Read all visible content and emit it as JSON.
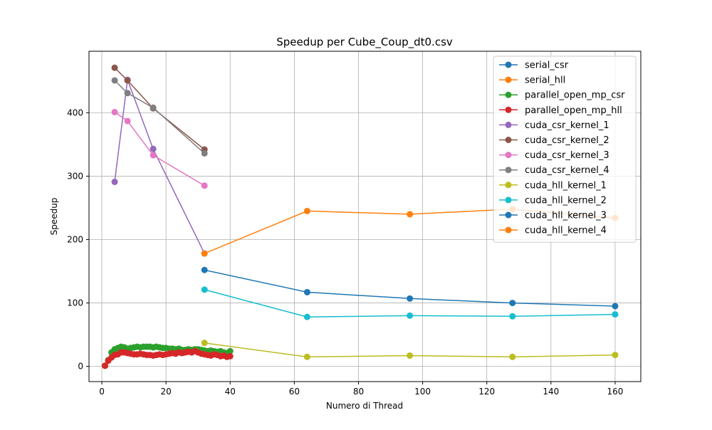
{
  "chart_data": {
    "type": "line",
    "title": "Speedup per Cube_Coup_dt0.csv",
    "xlabel": "Numero di Thread",
    "ylabel": "Speedup",
    "xlim": [
      -4,
      168
    ],
    "ylim": [
      -24,
      497
    ],
    "xticks": [
      0,
      20,
      40,
      60,
      80,
      100,
      120,
      140,
      160
    ],
    "yticks": [
      0,
      100,
      200,
      300,
      400
    ],
    "grid": true,
    "legend_position": "top-right",
    "series": [
      {
        "name": "serial_csr",
        "color": "#1f77b4",
        "x": [
          1
        ],
        "y": [
          1
        ]
      },
      {
        "name": "serial_hll",
        "color": "#ff7f0e",
        "x": [
          1
        ],
        "y": [
          1
        ]
      },
      {
        "name": "parallel_open_mp_csr",
        "color": "#2ca02c",
        "x": [
          1,
          2,
          3,
          4,
          5,
          6,
          7,
          8,
          9,
          10,
          11,
          12,
          13,
          14,
          15,
          16,
          17,
          18,
          19,
          20,
          21,
          22,
          23,
          24,
          25,
          26,
          27,
          28,
          29,
          30,
          31,
          32,
          33,
          34,
          35,
          36,
          37,
          38,
          39,
          40
        ],
        "y": [
          1,
          10,
          22,
          27,
          29,
          31,
          30,
          28,
          29,
          30,
          31,
          30,
          31,
          31,
          31,
          30,
          31,
          30,
          29,
          29,
          28,
          28,
          27,
          28,
          26,
          26,
          27,
          26,
          27,
          27,
          26,
          25,
          24,
          25,
          24,
          23,
          24,
          22,
          21,
          24
        ]
      },
      {
        "name": "parallel_open_mp_hll",
        "color": "#d62728",
        "x": [
          1,
          2,
          3,
          4,
          5,
          6,
          7,
          8,
          9,
          10,
          11,
          12,
          13,
          14,
          15,
          16,
          17,
          18,
          19,
          20,
          21,
          22,
          23,
          24,
          25,
          26,
          27,
          28,
          29,
          30,
          31,
          32,
          33,
          34,
          35,
          36,
          37,
          38,
          39,
          40
        ],
        "y": [
          1,
          9,
          14,
          18,
          19,
          22,
          22,
          21,
          20,
          19,
          19,
          20,
          19,
          18,
          18,
          17,
          18,
          19,
          18,
          19,
          20,
          21,
          20,
          22,
          21,
          22,
          23,
          22,
          24,
          22,
          20,
          19,
          18,
          17,
          19,
          18,
          16,
          17,
          15,
          16
        ]
      },
      {
        "name": "cuda_csr_kernel_1",
        "color": "#9467bd",
        "x": [
          4,
          8,
          16,
          32
        ],
        "y": [
          291,
          452,
          343,
          178
        ]
      },
      {
        "name": "cuda_csr_kernel_2",
        "color": "#8c564b",
        "x": [
          4,
          8,
          16,
          32
        ],
        "y": [
          471,
          451,
          407,
          342
        ]
      },
      {
        "name": "cuda_csr_kernel_3",
        "color": "#e377c2",
        "x": [
          4,
          8,
          16,
          32
        ],
        "y": [
          401,
          387,
          333,
          285
        ]
      },
      {
        "name": "cuda_csr_kernel_4",
        "color": "#7f7f7f",
        "x": [
          4,
          8,
          16,
          32
        ],
        "y": [
          451,
          431,
          408,
          336
        ]
      },
      {
        "name": "cuda_hll_kernel_1",
        "color": "#bcbd22",
        "x": [
          32,
          64,
          96,
          128,
          160
        ],
        "y": [
          37,
          15,
          17,
          15,
          18
        ]
      },
      {
        "name": "cuda_hll_kernel_2",
        "color": "#17becf",
        "x": [
          32,
          64,
          96,
          128,
          160
        ],
        "y": [
          121,
          78,
          80,
          79,
          82
        ]
      },
      {
        "name": "cuda_hll_kernel_3",
        "color": "#1f77b4",
        "x": [
          32,
          64,
          96,
          128,
          160
        ],
        "y": [
          152,
          117,
          107,
          100,
          95
        ]
      },
      {
        "name": "cuda_hll_kernel_4",
        "color": "#ff7f0e",
        "x": [
          32,
          64,
          96,
          128,
          160
        ],
        "y": [
          178,
          245,
          240,
          248,
          234
        ]
      }
    ]
  }
}
